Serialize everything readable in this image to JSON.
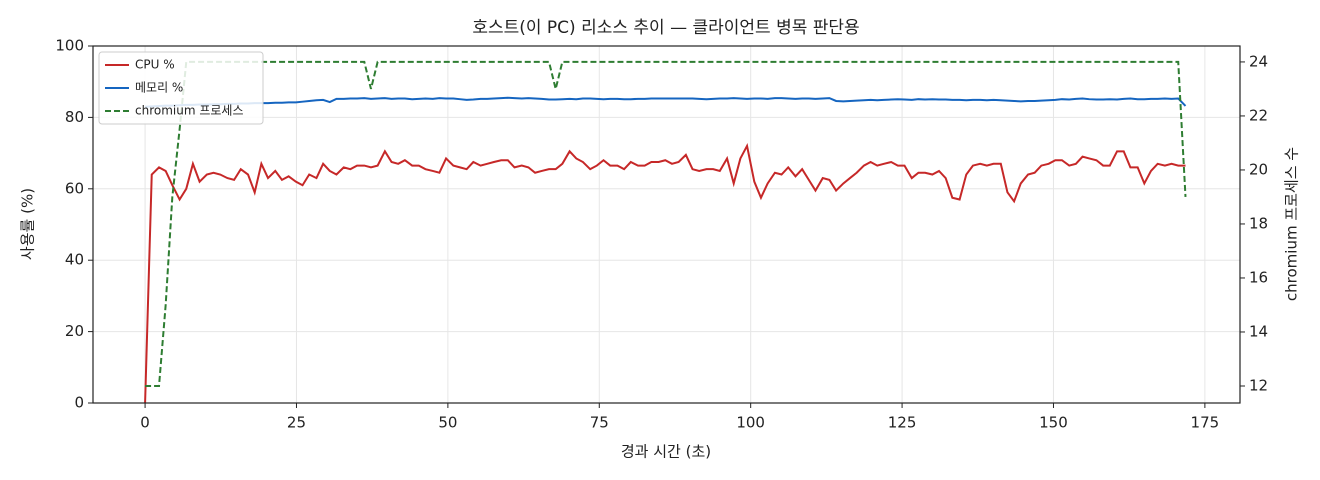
{
  "chart_data": {
    "type": "line",
    "title": "호스트(이 PC) 리소스 추이 — 클라이언트 병목 판단용",
    "xlabel": "경과 시간 (초)",
    "ylabel": "사용률 (%)",
    "y2label": "chromium 프로세스 수",
    "x": [
      0,
      1.1,
      2.3,
      3.4,
      4.5,
      5.7,
      6.8,
      7.9,
      9.0,
      10.2,
      11.3,
      12.4,
      13.6,
      14.7,
      15.8,
      17.0,
      18.1,
      19.2,
      20.3,
      21.5,
      22.6,
      23.7,
      24.9,
      26.0,
      27.1,
      28.3,
      29.4,
      30.5,
      31.6,
      32.8,
      33.9,
      35.0,
      36.2,
      37.3,
      38.4,
      39.6,
      40.7,
      41.8,
      42.9,
      44.1,
      45.2,
      46.3,
      47.5,
      48.6,
      49.7,
      50.9,
      52.0,
      53.1,
      54.2,
      55.4,
      56.5,
      57.6,
      58.8,
      59.9,
      61.0,
      62.2,
      63.3,
      64.4,
      65.5,
      66.7,
      67.8,
      68.9,
      70.1,
      71.2,
      72.3,
      73.5,
      74.6,
      75.7,
      76.8,
      78.0,
      79.1,
      80.2,
      81.4,
      82.5,
      83.6,
      84.8,
      85.9,
      87.0,
      88.1,
      89.3,
      90.4,
      91.5,
      92.7,
      93.8,
      94.9,
      96.1,
      97.2,
      98.3,
      99.4,
      100.6,
      101.7,
      102.8,
      104.0,
      105.1,
      106.2,
      107.4,
      108.5,
      109.6,
      110.7,
      111.9,
      113.0,
      114.1,
      115.3,
      116.4,
      117.5,
      118.7,
      119.8,
      120.9,
      122.0,
      123.2,
      124.3,
      125.4,
      126.6,
      127.7,
      128.8,
      130.0,
      131.1,
      132.2,
      133.3,
      134.5,
      135.6,
      136.7,
      137.9,
      139.0,
      140.1,
      141.3,
      142.4,
      143.5,
      144.6,
      145.8,
      146.9,
      148.0,
      149.2,
      150.3,
      151.4,
      152.6,
      153.7,
      154.8,
      155.9,
      157.1,
      158.2,
      159.3,
      160.5,
      161.6,
      162.7,
      163.9,
      165.0,
      166.1,
      167.2,
      168.4,
      169.5,
      170.6,
      171.8
    ],
    "series": [
      {
        "name": "CPU %",
        "color": "#c62828",
        "axis": "y",
        "dash": false,
        "values": [
          0,
          64,
          66,
          65,
          61,
          57,
          60,
          67,
          62,
          64,
          64.5,
          64,
          63,
          62.5,
          65.5,
          64,
          59,
          67,
          63,
          65,
          62.5,
          63.5,
          62,
          61,
          64,
          63,
          67,
          65,
          64,
          66,
          65.5,
          66.5,
          66.5,
          66,
          66.5,
          70.5,
          67.5,
          67,
          68,
          66.5,
          66.5,
          65.5,
          65,
          64.5,
          68.5,
          66.5,
          66,
          65.5,
          67.5,
          66.5,
          67,
          67.5,
          68,
          68,
          66,
          66.5,
          66,
          64.5,
          65,
          65.5,
          65.5,
          67,
          70.5,
          68.5,
          67.5,
          65.5,
          66.5,
          68,
          66.5,
          66.5,
          65.5,
          67.5,
          66.5,
          66.5,
          67.5,
          67.5,
          68,
          67,
          67.5,
          69.5,
          65.5,
          65,
          65.5,
          65.5,
          65,
          68.5,
          61.5,
          68.5,
          72,
          62,
          57.5,
          61.5,
          64.5,
          64,
          66,
          63.5,
          65.5,
          62.5,
          59.5,
          63,
          62.5,
          59.5,
          61.5,
          63,
          64.5,
          66.5,
          67.5,
          66.5,
          67,
          67.5,
          66.5,
          66.5,
          63,
          64.5,
          64.5,
          64,
          65,
          63,
          57.5,
          57,
          64,
          66.5,
          67,
          66.5,
          67,
          67,
          59,
          56.5,
          61.5,
          64,
          64.5,
          66.5,
          67,
          68,
          68,
          66.5,
          67,
          69,
          68.5,
          68,
          66.5,
          66.5,
          70.5,
          70.5,
          66,
          66,
          61.5,
          65,
          67,
          66.5,
          67,
          66.5,
          66.5
        ]
      },
      {
        "name": "메모리 %",
        "color": "#1565c0",
        "axis": "y",
        "dash": false,
        "values": [
          83,
          83.1,
          83.2,
          83.3,
          83.3,
          83.4,
          83.5,
          83.5,
          83.6,
          83.6,
          83.7,
          83.7,
          83.8,
          83.8,
          83.9,
          83.9,
          84,
          84,
          84,
          84.1,
          84.1,
          84.2,
          84.2,
          84.4,
          84.6,
          84.8,
          84.9,
          84.3,
          85.2,
          85.2,
          85.3,
          85.3,
          85.4,
          85.2,
          85.3,
          85.4,
          85.2,
          85.3,
          85.3,
          85.1,
          85.2,
          85.3,
          85.2,
          85.4,
          85.3,
          85.3,
          85.1,
          84.9,
          85.0,
          85.2,
          85.2,
          85.3,
          85.4,
          85.5,
          85.4,
          85.3,
          85.4,
          85.3,
          85.2,
          85.0,
          85.0,
          85.1,
          85.2,
          85.1,
          85.3,
          85.3,
          85.2,
          85.1,
          85.2,
          85.2,
          85.1,
          85.1,
          85.2,
          85.2,
          85.3,
          85.3,
          85.3,
          85.3,
          85.3,
          85.3,
          85.3,
          85.2,
          85.1,
          85.2,
          85.3,
          85.3,
          85.4,
          85.3,
          85.2,
          85.3,
          85.3,
          85.2,
          85.4,
          85.4,
          85.3,
          85.2,
          85.3,
          85.3,
          85.2,
          85.3,
          85.4,
          84.6,
          84.5,
          84.6,
          84.7,
          84.8,
          84.9,
          84.8,
          84.9,
          85.0,
          85.1,
          85.0,
          84.9,
          85.1,
          85.0,
          85.1,
          85.0,
          85.0,
          84.9,
          84.9,
          84.8,
          84.9,
          84.9,
          84.8,
          84.9,
          84.8,
          84.7,
          84.6,
          84.5,
          84.6,
          84.6,
          84.7,
          84.8,
          84.9,
          85.1,
          85.0,
          85.2,
          85.3,
          85.1,
          85.0,
          85.0,
          85.1,
          85.0,
          85.2,
          85.3,
          85.1,
          85.1,
          85.2,
          85.2,
          85.3,
          85.2,
          85.3,
          83.2
        ]
      },
      {
        "name": "chromium 프로세스",
        "color": "#2e7d32",
        "axis": "y2",
        "dash": true,
        "values": [
          12,
          12,
          12,
          15,
          19,
          21.5,
          24,
          24,
          24,
          24,
          24,
          24,
          24,
          24,
          24,
          24,
          24,
          24,
          24,
          24,
          24,
          24,
          24,
          24,
          24,
          24,
          24,
          24,
          24,
          24,
          24,
          24,
          24,
          23,
          24,
          24,
          24,
          24,
          24,
          24,
          24,
          24,
          24,
          24,
          24,
          24,
          24,
          24,
          24,
          24,
          24,
          24,
          24,
          24,
          24,
          24,
          24,
          24,
          24,
          24,
          23,
          24,
          24,
          24,
          24,
          24,
          24,
          24,
          24,
          24,
          24,
          24,
          24,
          24,
          24,
          24,
          24,
          24,
          24,
          24,
          24,
          24,
          24,
          24,
          24,
          24,
          24,
          24,
          24,
          24,
          24,
          24,
          24,
          24,
          24,
          24,
          24,
          24,
          24,
          24,
          24,
          24,
          24,
          24,
          24,
          24,
          24,
          24,
          24,
          24,
          24,
          24,
          24,
          24,
          24,
          24,
          24,
          24,
          24,
          24,
          24,
          24,
          24,
          24,
          24,
          24,
          24,
          24,
          24,
          24,
          24,
          24,
          24,
          24,
          24,
          24,
          24,
          24,
          24,
          24,
          24,
          24,
          24,
          24,
          24,
          24,
          24,
          24,
          24,
          24,
          24,
          24,
          19
        ]
      }
    ],
    "xlim": [
      -8.6,
      180.8
    ],
    "xticks": [
      0,
      25,
      50,
      75,
      100,
      125,
      150,
      175
    ],
    "ylim": [
      0,
      100
    ],
    "yticks": [
      0,
      20,
      40,
      60,
      80,
      100
    ],
    "y2lim": [
      11.37,
      24.59
    ],
    "y2ticks": [
      12,
      14,
      16,
      18,
      20,
      22,
      24
    ],
    "grid": true,
    "legend": "upper left"
  }
}
